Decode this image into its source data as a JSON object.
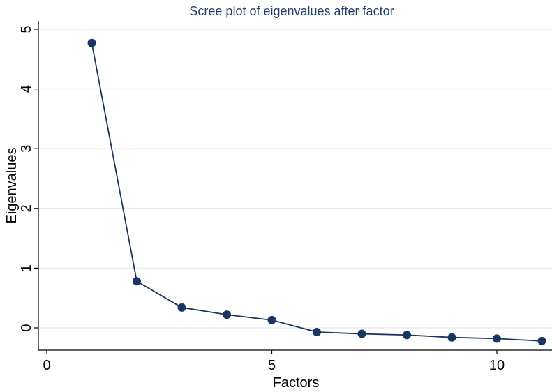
{
  "chart_data": {
    "type": "line",
    "title": "Scree plot of eigenvalues after factor",
    "xlabel": "Factors",
    "ylabel": "Eigenvalues",
    "x": [
      1,
      2,
      3,
      4,
      5,
      6,
      7,
      8,
      9,
      10,
      11
    ],
    "values": [
      4.77,
      0.78,
      0.34,
      0.22,
      0.13,
      -0.07,
      -0.1,
      -0.12,
      -0.16,
      -0.18,
      -0.22
    ],
    "xlim": [
      0,
      11
    ],
    "ylim": [
      -0.35,
      5.1
    ],
    "xticks": [
      0,
      5,
      10
    ],
    "yticks": [
      0,
      1,
      2,
      3,
      4,
      5
    ],
    "grid": true,
    "legend": "none",
    "colors": {
      "series": "#1a3560",
      "title": "#1f3f6e",
      "grid": "#e8eced"
    }
  }
}
